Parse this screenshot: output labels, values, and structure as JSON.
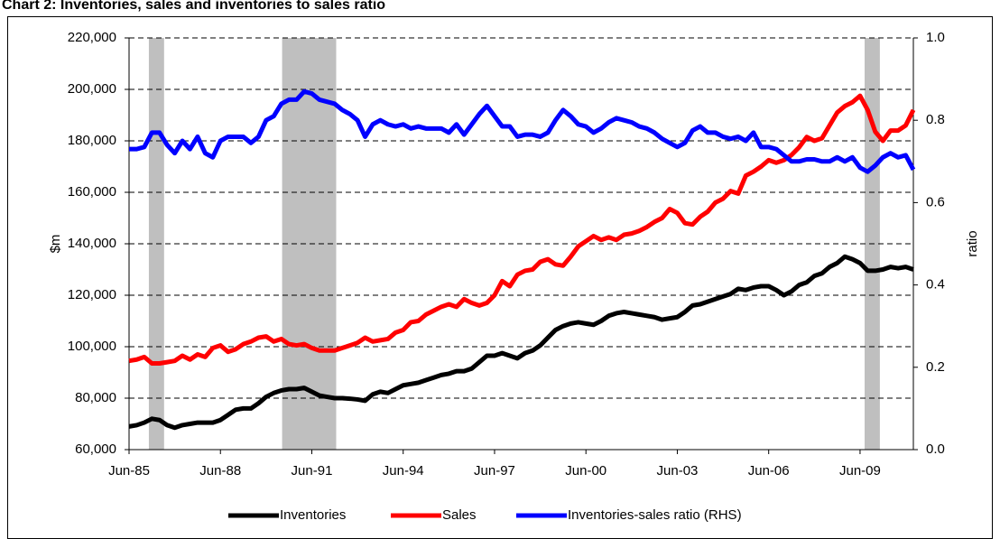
{
  "chart_data": {
    "type": "line",
    "title": "Chart 2: Inventories, sales and inventories to sales ratio",
    "y_label": "$m",
    "y2_label": "ratio",
    "categories": [
      "Jun-85",
      null,
      null,
      null,
      null,
      null,
      null,
      null,
      null,
      null,
      null,
      null,
      "Jun-88",
      null,
      null,
      null,
      null,
      null,
      null,
      null,
      null,
      null,
      null,
      null,
      "Jun-91",
      null,
      null,
      null,
      null,
      null,
      null,
      null,
      null,
      null,
      null,
      null,
      "Jun-94",
      null,
      null,
      null,
      null,
      null,
      null,
      null,
      null,
      null,
      null,
      null,
      "Jun-97",
      null,
      null,
      null,
      null,
      null,
      null,
      null,
      null,
      null,
      null,
      null,
      "Jun-00",
      null,
      null,
      null,
      null,
      null,
      null,
      null,
      null,
      null,
      null,
      null,
      "Jun-03",
      null,
      null,
      null,
      null,
      null,
      null,
      null,
      null,
      null,
      null,
      null,
      "Jun-06",
      null,
      null,
      null,
      null,
      null,
      null,
      null,
      null,
      null,
      null,
      null,
      "Jun-09",
      null,
      null,
      null,
      null,
      null,
      null,
      null
    ],
    "shaded": [
      [
        2.6,
        4.6
      ],
      [
        20.1,
        27.2
      ],
      [
        96.6,
        98.6
      ]
    ],
    "shade_color": "#bfbfbf",
    "ylim": [
      60000,
      220000
    ],
    "yticks": [
      {
        "value": 60000,
        "label": "60,000"
      },
      {
        "value": 80000,
        "label": "80,000"
      },
      {
        "value": 100000,
        "label": "100,000"
      },
      {
        "value": 120000,
        "label": "120,000"
      },
      {
        "value": 140000,
        "label": "140,000"
      },
      {
        "value": 160000,
        "label": "160,000"
      },
      {
        "value": 180000,
        "label": "180,000"
      },
      {
        "value": 200000,
        "label": "200,000"
      },
      {
        "value": 220000,
        "label": "220,000"
      }
    ],
    "y2lim": [
      0,
      1
    ],
    "y2ticks": [
      {
        "value": 0,
        "label": "0.0"
      },
      0.2,
      0.4,
      0.6,
      0.8,
      {
        "value": 1,
        "label": "1.0"
      }
    ],
    "grid": true,
    "legend": "bottom",
    "series": [
      {
        "name": "Inventories",
        "color": "#000000",
        "values": [
          69000,
          69500,
          70500,
          72000,
          71500,
          69500,
          68500,
          69500,
          70000,
          70500,
          70500,
          70500,
          71500,
          73500,
          75500,
          76000,
          76000,
          78000,
          80500,
          82000,
          83000,
          83500,
          83500,
          84000,
          82500,
          81000,
          80500,
          80000,
          80000,
          79800,
          79500,
          79000,
          81500,
          82500,
          82000,
          83500,
          85000,
          85500,
          86000,
          87000,
          88000,
          89000,
          89500,
          90500,
          90500,
          91500,
          94000,
          96500,
          96500,
          97500,
          96500,
          95500,
          97500,
          98500,
          100500,
          103500,
          106500,
          108000,
          109000,
          109500,
          109000,
          108500,
          110000,
          112000,
          113000,
          113500,
          113000,
          112500,
          112000,
          111500,
          110500,
          111000,
          111500,
          113500,
          116000,
          116500,
          117500,
          118500,
          119500,
          120500,
          122500,
          122000,
          123000,
          123500,
          123500,
          122000,
          120000,
          121500,
          124000,
          125000,
          127500,
          128500,
          131000,
          132500,
          135000,
          134000,
          132500,
          129500,
          129500,
          130000,
          131000,
          130500,
          131000,
          130000
        ]
      },
      {
        "name": "Sales",
        "color": "#ff0000",
        "values": [
          94500,
          95000,
          96000,
          93500,
          93500,
          94000,
          94500,
          96500,
          95000,
          97000,
          96000,
          99500,
          100500,
          98000,
          99000,
          101000,
          102000,
          103500,
          104000,
          102000,
          103000,
          101000,
          100500,
          101000,
          99500,
          98500,
          98500,
          98500,
          99500,
          100500,
          101500,
          103500,
          102000,
          102500,
          103000,
          105500,
          106500,
          109500,
          110000,
          112500,
          114000,
          115500,
          116500,
          115500,
          118500,
          117000,
          116000,
          117000,
          120000,
          125500,
          123500,
          128000,
          129500,
          130000,
          133000,
          134000,
          132000,
          131500,
          135000,
          139000,
          141000,
          143000,
          141500,
          142500,
          141500,
          143500,
          144000,
          145000,
          146500,
          148500,
          150000,
          153500,
          152000,
          148000,
          147500,
          150500,
          152500,
          156000,
          157500,
          160500,
          159500,
          166500,
          168000,
          170000,
          172500,
          171500,
          172500,
          174500,
          177500,
          181500,
          180000,
          181000,
          186000,
          191000,
          193500,
          195000,
          197500,
          192000,
          183500,
          180000,
          184000,
          184000,
          186000,
          192000
        ]
      },
      {
        "name": "Inventories-sales ratio (RHS)",
        "color": "#0000ff",
        "axis": "y2",
        "values": [
          0.73,
          0.73,
          0.735,
          0.77,
          0.77,
          0.74,
          0.72,
          0.75,
          0.73,
          0.76,
          0.72,
          0.71,
          0.75,
          0.76,
          0.76,
          0.76,
          0.745,
          0.76,
          0.8,
          0.81,
          0.84,
          0.85,
          0.85,
          0.87,
          0.865,
          0.85,
          0.845,
          0.84,
          0.825,
          0.815,
          0.8,
          0.76,
          0.79,
          0.8,
          0.79,
          0.785,
          0.79,
          0.78,
          0.785,
          0.78,
          0.78,
          0.78,
          0.77,
          0.79,
          0.765,
          0.79,
          0.815,
          0.835,
          0.81,
          0.785,
          0.785,
          0.76,
          0.765,
          0.765,
          0.76,
          0.77,
          0.8,
          0.825,
          0.81,
          0.79,
          0.785,
          0.77,
          0.78,
          0.795,
          0.805,
          0.8,
          0.795,
          0.785,
          0.78,
          0.77,
          0.755,
          0.745,
          0.735,
          0.745,
          0.775,
          0.785,
          0.77,
          0.77,
          0.76,
          0.755,
          0.76,
          0.75,
          0.77,
          0.735,
          0.735,
          0.73,
          0.715,
          0.7,
          0.7,
          0.705,
          0.705,
          0.7,
          0.7,
          0.71,
          0.7,
          0.71,
          0.685,
          0.675,
          0.69,
          0.71,
          0.72,
          0.71,
          0.715,
          0.68
        ]
      }
    ]
  }
}
